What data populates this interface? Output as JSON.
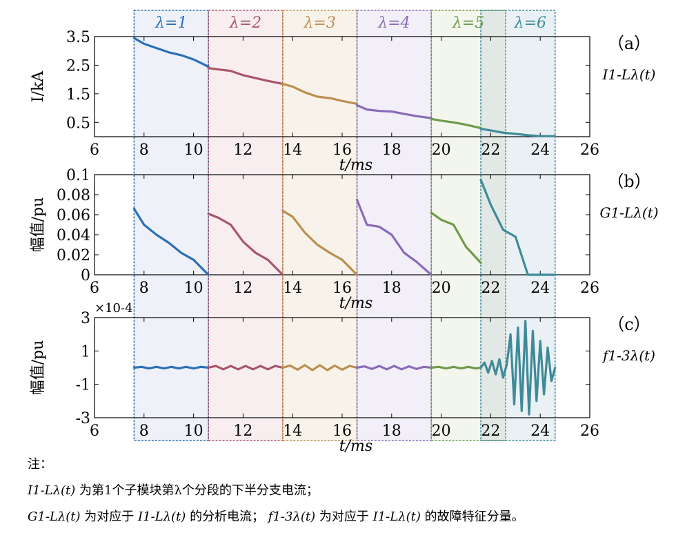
{
  "chart_data": [
    {
      "type": "line",
      "panel_label": "（a）",
      "signal_label": "I1-Lλ(t)",
      "ylabel": "I/kA",
      "xlabel": "t/ms",
      "xlim": [
        6,
        26
      ],
      "ylim": [
        0,
        3.5
      ],
      "xticks": [
        6,
        8,
        10,
        12,
        14,
        16,
        18,
        20,
        22,
        24,
        26
      ],
      "yticks": [
        0.5,
        1.5,
        2.5,
        3.5
      ],
      "series": [
        {
          "name": "λ=1",
          "color": "#2b6fb5",
          "x": [
            7.6,
            8.0,
            8.5,
            9.0,
            9.5,
            10.0,
            10.6
          ],
          "y": [
            3.45,
            3.25,
            3.1,
            2.95,
            2.85,
            2.7,
            2.45
          ]
        },
        {
          "name": "λ=2",
          "color": "#a9546a",
          "x": [
            10.6,
            11.0,
            11.5,
            12.0,
            12.5,
            13.0,
            13.6
          ],
          "y": [
            2.4,
            2.35,
            2.3,
            2.15,
            2.05,
            1.95,
            1.85
          ]
        },
        {
          "name": "λ=3",
          "color": "#bb8f4f",
          "x": [
            13.6,
            14.0,
            14.5,
            15.0,
            15.5,
            16.0,
            16.6
          ],
          "y": [
            1.85,
            1.75,
            1.55,
            1.4,
            1.35,
            1.25,
            1.15
          ]
        },
        {
          "name": "λ=4",
          "color": "#8a6bb7",
          "x": [
            16.6,
            17.0,
            17.5,
            18.0,
            18.5,
            19.0,
            19.6
          ],
          "y": [
            1.1,
            0.95,
            0.9,
            0.88,
            0.8,
            0.72,
            0.65
          ]
        },
        {
          "name": "λ=5",
          "color": "#6e9a4b",
          "x": [
            19.6,
            20.0,
            20.5,
            21.0,
            21.6
          ],
          "y": [
            0.62,
            0.56,
            0.5,
            0.42,
            0.3
          ]
        },
        {
          "name": "λ=6",
          "color": "#3f8a99",
          "x": [
            21.6,
            22.0,
            22.5,
            23.0,
            23.5,
            24.0,
            24.6
          ],
          "y": [
            0.28,
            0.22,
            0.14,
            0.1,
            0.05,
            0.02,
            0.02
          ]
        }
      ]
    },
    {
      "type": "line",
      "panel_label": "（b）",
      "signal_label": "G1-Lλ(t)",
      "ylabel": "幅值/pu",
      "xlabel": "t/ms",
      "xlim": [
        6,
        26
      ],
      "ylim": [
        0,
        0.1
      ],
      "xticks": [
        6,
        8,
        10,
        12,
        14,
        16,
        18,
        20,
        22,
        24,
        26
      ],
      "yticks": [
        "0",
        "0.02",
        "0.04",
        "0.06",
        "0.08",
        "0.1"
      ],
      "series": [
        {
          "name": "λ=1",
          "color": "#2b6fb5",
          "x": [
            7.6,
            8.0,
            8.5,
            9.0,
            9.5,
            10.0,
            10.6
          ],
          "y": [
            0.066,
            0.05,
            0.04,
            0.032,
            0.022,
            0.015,
            0.0
          ]
        },
        {
          "name": "λ=2",
          "color": "#a9546a",
          "x": [
            10.6,
            11.0,
            11.5,
            12.0,
            12.5,
            13.0,
            13.6
          ],
          "y": [
            0.061,
            0.057,
            0.05,
            0.033,
            0.022,
            0.015,
            0.0
          ]
        },
        {
          "name": "λ=3",
          "color": "#bb8f4f",
          "x": [
            13.6,
            14.0,
            14.5,
            15.0,
            15.5,
            16.0,
            16.6
          ],
          "y": [
            0.064,
            0.058,
            0.042,
            0.03,
            0.022,
            0.015,
            0.0
          ]
        },
        {
          "name": "λ=4",
          "color": "#8a6bb7",
          "x": [
            16.6,
            17.0,
            17.5,
            18.0,
            18.5,
            19.0,
            19.6
          ],
          "y": [
            0.075,
            0.05,
            0.048,
            0.04,
            0.022,
            0.013,
            0.0
          ]
        },
        {
          "name": "λ=5",
          "color": "#6e9a4b",
          "x": [
            19.6,
            20.0,
            20.5,
            21.0,
            21.6
          ],
          "y": [
            0.062,
            0.055,
            0.05,
            0.028,
            0.012
          ]
        },
        {
          "name": "λ=6",
          "color": "#3f8a99",
          "x": [
            21.6,
            22.0,
            22.5,
            23.0,
            23.5,
            24.0,
            24.6
          ],
          "y": [
            0.095,
            0.07,
            0.045,
            0.038,
            0.0,
            0.0,
            0.0
          ]
        }
      ]
    },
    {
      "type": "line",
      "panel_label": "（c）",
      "signal_label": "f1-3λ(t)",
      "ylabel": "幅值/pu",
      "xlabel": "t/ms",
      "scale_label": "×10-4",
      "xlim": [
        6,
        26
      ],
      "ylim": [
        -3,
        3
      ],
      "xticks": [
        6,
        8,
        10,
        12,
        14,
        16,
        18,
        20,
        22,
        24,
        26
      ],
      "yticks": [
        -3,
        -1,
        1,
        3
      ],
      "series": [
        {
          "name": "λ=1",
          "color": "#2b6fb5",
          "x": [
            7.6,
            7.9,
            8.2,
            8.5,
            8.8,
            9.1,
            9.4,
            9.7,
            10.0,
            10.3,
            10.6
          ],
          "y": [
            0.0,
            0.05,
            -0.05,
            0.05,
            -0.05,
            0.05,
            -0.05,
            0.05,
            -0.05,
            0.05,
            0.0
          ]
        },
        {
          "name": "λ=2",
          "color": "#a9546a",
          "x": [
            10.6,
            10.9,
            11.2,
            11.5,
            11.8,
            12.1,
            12.4,
            12.7,
            13.0,
            13.3,
            13.6
          ],
          "y": [
            0.0,
            0.1,
            -0.1,
            0.1,
            -0.1,
            0.1,
            -0.1,
            0.1,
            -0.1,
            0.1,
            0.0
          ]
        },
        {
          "name": "λ=3",
          "color": "#bb8f4f",
          "x": [
            13.6,
            13.9,
            14.2,
            14.5,
            14.8,
            15.1,
            15.4,
            15.7,
            16.0,
            16.3,
            16.6
          ],
          "y": [
            0.0,
            0.12,
            -0.12,
            0.15,
            -0.15,
            0.15,
            -0.15,
            0.12,
            -0.12,
            0.1,
            0.0
          ]
        },
        {
          "name": "λ=4",
          "color": "#8a6bb7",
          "x": [
            16.6,
            16.9,
            17.2,
            17.5,
            17.8,
            18.1,
            18.4,
            18.7,
            19.0,
            19.3,
            19.6
          ],
          "y": [
            0.0,
            0.08,
            -0.08,
            0.1,
            -0.1,
            0.1,
            -0.1,
            0.08,
            -0.08,
            0.05,
            0.0
          ]
        },
        {
          "name": "λ=5",
          "color": "#6e9a4b",
          "x": [
            19.6,
            19.9,
            20.2,
            20.5,
            20.8,
            21.1,
            21.4,
            21.6
          ],
          "y": [
            0.0,
            0.05,
            -0.05,
            0.05,
            -0.05,
            0.05,
            -0.05,
            0.0
          ]
        },
        {
          "name": "λ=6",
          "color": "#3f8a99",
          "x": [
            21.6,
            21.75,
            21.9,
            22.05,
            22.2,
            22.35,
            22.5,
            22.65,
            22.8,
            22.95,
            23.1,
            23.25,
            23.4,
            23.55,
            23.7,
            23.85,
            24.0,
            24.15,
            24.3,
            24.45,
            24.6
          ],
          "y": [
            0.0,
            0.3,
            -0.3,
            0.4,
            -0.4,
            0.5,
            -0.6,
            0.2,
            2.0,
            -2.2,
            2.4,
            -2.6,
            2.8,
            -2.8,
            2.2,
            -2.0,
            1.6,
            -1.6,
            1.2,
            -0.8,
            0.0
          ]
        }
      ]
    }
  ],
  "segments": [
    {
      "label": "λ=1",
      "x0": 7.6,
      "x1": 10.6,
      "color": "#2b6fb5",
      "fill": "#eef2f8"
    },
    {
      "label": "λ=2",
      "x0": 10.6,
      "x1": 13.6,
      "color": "#a9546a",
      "fill": "#f8eef0"
    },
    {
      "label": "λ=3",
      "x0": 13.6,
      "x1": 16.6,
      "color": "#bb8f4f",
      "fill": "#f8f3ea"
    },
    {
      "label": "λ=4",
      "x0": 16.6,
      "x1": 19.6,
      "color": "#8a6bb7",
      "fill": "#f2eff8"
    },
    {
      "label": "λ=5",
      "x0": 19.6,
      "x1": 22.6,
      "color": "#6e9a4b",
      "fill": "#f3f6ec"
    },
    {
      "label": "λ=6",
      "x0": 21.6,
      "x1": 24.6,
      "color": "#3f8a99",
      "fill": "#eaf1f4"
    }
  ],
  "overlap_fill": "#e2e8e5",
  "notes": {
    "title": "注：",
    "line1_sym": "I1-Lλ(t)",
    "line1_text": "为第1个子模块第λ个分段的下半分支电流；",
    "line2_sym": "G1-Lλ(t)",
    "line2_text_a": "为对应于",
    "line2_sym2": "I1-Lλ(t)",
    "line2_text_b": "的分析电流；",
    "line2_sym3": "f1-3λ(t)",
    "line2_text_c": "为对应于",
    "line2_sym4": "I1-Lλ(t)",
    "line2_text_d": "的故障特征分量。"
  }
}
